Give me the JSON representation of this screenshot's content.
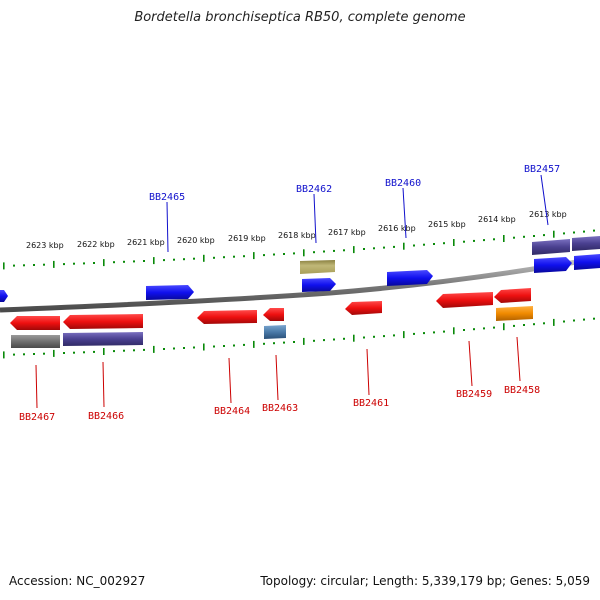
{
  "title": "Bordetella bronchiseptica RB50, complete genome",
  "footer": {
    "accession": "Accession: NC_002927",
    "summary": "Topology: circular; Length: 5,339,179 bp; Genes: 5,059"
  },
  "colors": {
    "backbone": "#8a8a8a",
    "tick": "#0a8a0a",
    "forward_label": "#1010cc",
    "reverse_label": "#cc0000",
    "blue_gene": "#1010ee",
    "red_gene": "#ee1010",
    "gray_gene": "#707070",
    "purple_gene": "#4a4090",
    "olive_gene": "#b0a860",
    "steel_gene": "#4a7aa8",
    "orange_gene": "#f08a00"
  },
  "kbp_labels": [
    "2613 kbp",
    "2614 kbp",
    "2615 kbp",
    "2616 kbp",
    "2617 kbp",
    "2618 kbp",
    "2619 kbp",
    "2620 kbp",
    "2621 kbp",
    "2622 kbp",
    "2623 kbp"
  ],
  "forward_labels": [
    {
      "id": "label-bb2457",
      "text": "BB2457"
    },
    {
      "id": "label-bb2460",
      "text": "BB2460"
    },
    {
      "id": "label-bb2462",
      "text": "BB2462"
    },
    {
      "id": "label-bb2465",
      "text": "BB2465"
    }
  ],
  "reverse_labels": [
    {
      "id": "label-bb2458",
      "text": "BB2458"
    },
    {
      "id": "label-bb2459",
      "text": "BB2459"
    },
    {
      "id": "label-bb2461",
      "text": "BB2461"
    },
    {
      "id": "label-bb2463",
      "text": "BB2463"
    },
    {
      "id": "label-bb2464",
      "text": "BB2464"
    },
    {
      "id": "label-bb2466",
      "text": "BB2466"
    },
    {
      "id": "label-bb2467",
      "text": "BB2467"
    }
  ]
}
